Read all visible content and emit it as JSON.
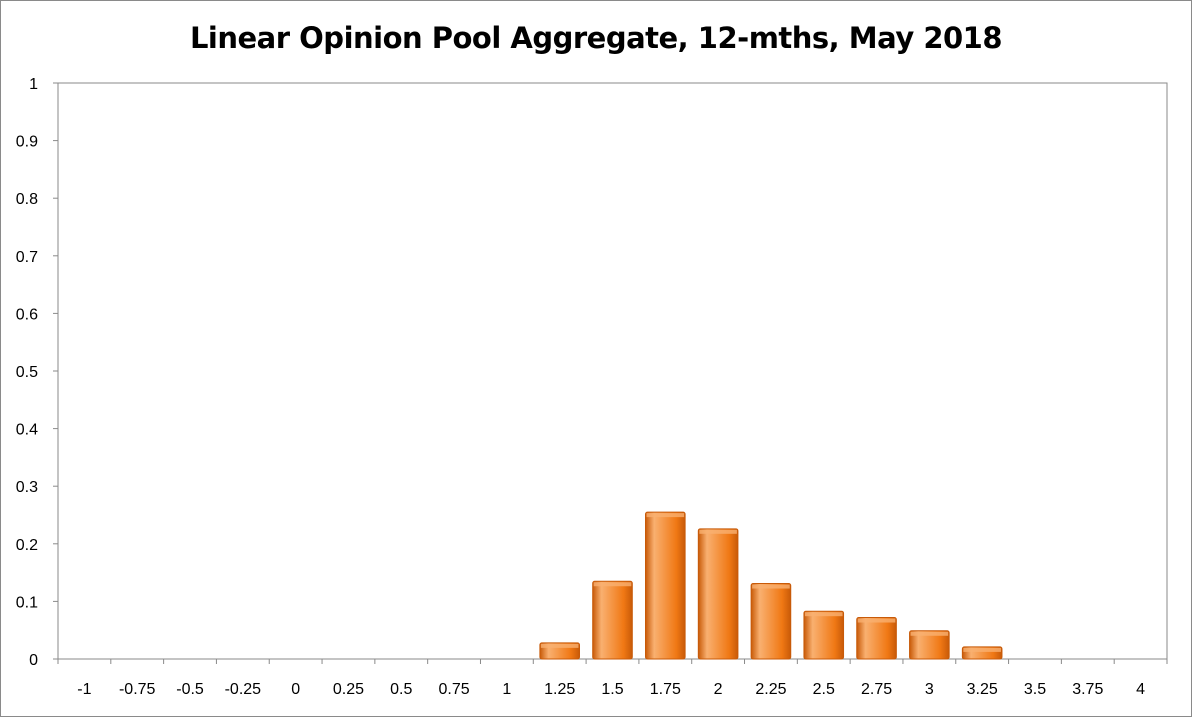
{
  "chart_data": {
    "type": "bar",
    "title": "Linear Opinion Pool Aggregate, 12-mths, May 2018",
    "xlabel": "",
    "ylabel": "",
    "categories": [
      "-1",
      "-0.75",
      "-0.5",
      "-0.25",
      "0",
      "0.25",
      "0.5",
      "0.75",
      "1",
      "1.25",
      "1.5",
      "1.75",
      "2",
      "2.25",
      "2.5",
      "2.75",
      "3",
      "3.25",
      "3.5",
      "3.75",
      "4"
    ],
    "values": [
      0,
      0,
      0,
      0,
      0,
      0,
      0,
      0,
      0,
      0.028,
      0.135,
      0.255,
      0.226,
      0.131,
      0.083,
      0.072,
      0.049,
      0.021,
      0,
      0,
      0
    ],
    "ylim": [
      0,
      1
    ],
    "yticks": [
      "0",
      "0.1",
      "0.2",
      "0.3",
      "0.4",
      "0.5",
      "0.6",
      "0.7",
      "0.8",
      "0.9",
      "1"
    ],
    "grid": false,
    "legend": "none",
    "colors": {
      "bar_fill": "#F07814",
      "bar_light": "#F9B070",
      "bar_dark": "#C85A08",
      "plot_border": "#8a8a8a",
      "axis": "#8a8a8a"
    }
  }
}
